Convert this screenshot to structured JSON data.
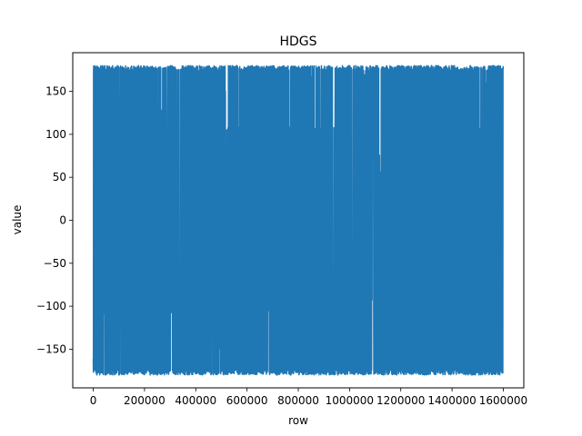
{
  "chart_data": {
    "type": "line",
    "title": "HDGS",
    "xlabel": "row",
    "ylabel": "value",
    "xlim": [
      -80000,
      1680000
    ],
    "ylim": [
      -195,
      195
    ],
    "xticks": [
      0,
      200000,
      400000,
      600000,
      800000,
      1000000,
      1200000,
      1400000,
      1600000
    ],
    "xtick_labels": [
      "0",
      "200000",
      "400000",
      "600000",
      "800000",
      "1000000",
      "1200000",
      "1400000",
      "1600000"
    ],
    "yticks": [
      -150,
      -100,
      -50,
      0,
      50,
      100,
      150
    ],
    "ytick_labels": [
      "−150",
      "−100",
      "−50",
      "0",
      "50",
      "100",
      "150"
    ],
    "grid": false,
    "legend": "none",
    "series": [
      {
        "color": "#1f77b4",
        "x_range": [
          0,
          1600000
        ],
        "y_range": [
          -180,
          180
        ],
        "sample_x": [
          0,
          100000,
          200000,
          300000,
          400000,
          500000,
          600000,
          700000,
          800000,
          900000,
          1000000,
          1100000,
          1200000,
          1300000,
          1400000,
          1500000,
          1600000
        ],
        "sample_y": [
          -100,
          120,
          -170,
          160,
          -60,
          175,
          -175,
          40,
          -150,
          170,
          -90,
          150,
          -170,
          90,
          -120,
          175,
          -60
        ]
      }
    ]
  }
}
